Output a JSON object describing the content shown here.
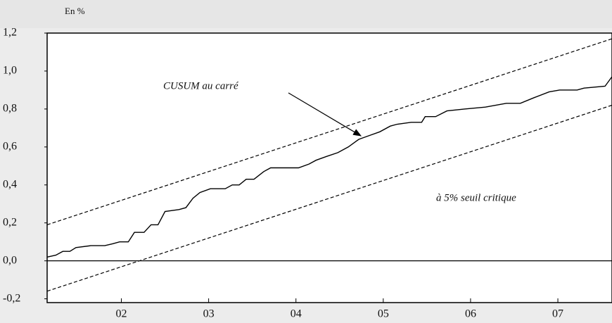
{
  "chart_data": {
    "type": "line",
    "y_label": "En %",
    "xlim": [
      2001.15,
      2007.62
    ],
    "ylim": [
      -0.22,
      1.2
    ],
    "xticks": [
      {
        "value": 2002,
        "label": "02"
      },
      {
        "value": 2003,
        "label": "03"
      },
      {
        "value": 2004,
        "label": "04"
      },
      {
        "value": 2005,
        "label": "05"
      },
      {
        "value": 2006,
        "label": "06"
      },
      {
        "value": 2007,
        "label": "07"
      }
    ],
    "yticks": [
      {
        "value": -0.2,
        "label": "-0,2"
      },
      {
        "value": 0,
        "label": "0,0"
      },
      {
        "value": 0.2,
        "label": "0,2"
      },
      {
        "value": 0.4,
        "label": "0,4"
      },
      {
        "value": 0.6,
        "label": "0,6"
      },
      {
        "value": 0.8,
        "label": "0,8"
      },
      {
        "value": 1.0,
        "label": "1,0"
      },
      {
        "value": 1.2,
        "label": "1,2"
      }
    ],
    "zero_line": true,
    "series": [
      {
        "color": "#000000",
        "dashed": false,
        "x": [
          2001.15,
          2001.25,
          2001.33,
          2001.41,
          2001.48,
          2001.65,
          2001.81,
          2001.9,
          2001.98,
          2002.08,
          2002.15,
          2002.26,
          2002.34,
          2002.42,
          2002.5,
          2002.66,
          2002.74,
          2002.82,
          2002.9,
          2003.02,
          2003.19,
          2003.27,
          2003.35,
          2003.43,
          2003.52,
          2003.63,
          2003.71,
          2004.03,
          2004.15,
          2004.23,
          2004.35,
          2004.48,
          2004.6,
          2004.72,
          2004.84,
          2004.96,
          2005.08,
          2005.16,
          2005.32,
          2005.44,
          2005.48,
          2005.6,
          2005.73,
          2005.93,
          2006.17,
          2006.41,
          2006.57,
          2006.73,
          2006.9,
          2007.02,
          2007.22,
          2007.3,
          2007.54,
          2007.62
        ],
        "values": [
          0.02,
          0.03,
          0.05,
          0.05,
          0.07,
          0.08,
          0.08,
          0.09,
          0.1,
          0.1,
          0.15,
          0.15,
          0.19,
          0.19,
          0.26,
          0.27,
          0.28,
          0.33,
          0.36,
          0.38,
          0.38,
          0.4,
          0.4,
          0.43,
          0.43,
          0.47,
          0.49,
          0.49,
          0.51,
          0.53,
          0.55,
          0.57,
          0.6,
          0.64,
          0.66,
          0.68,
          0.71,
          0.72,
          0.73,
          0.73,
          0.76,
          0.76,
          0.79,
          0.8,
          0.81,
          0.83,
          0.83,
          0.86,
          0.89,
          0.9,
          0.9,
          0.91,
          0.92,
          0.97
        ]
      },
      {
        "color": "#000000",
        "dashed": true,
        "x": [
          2001.15,
          2007.62
        ],
        "values": [
          0.19,
          1.17
        ]
      },
      {
        "color": "#000000",
        "dashed": true,
        "x": [
          2001.15,
          2007.62
        ],
        "values": [
          -0.16,
          0.82
        ]
      }
    ],
    "annotations": [
      {
        "text": "CUSUM au carré"
      },
      {
        "text": "à 5% seuil critique"
      }
    ]
  }
}
